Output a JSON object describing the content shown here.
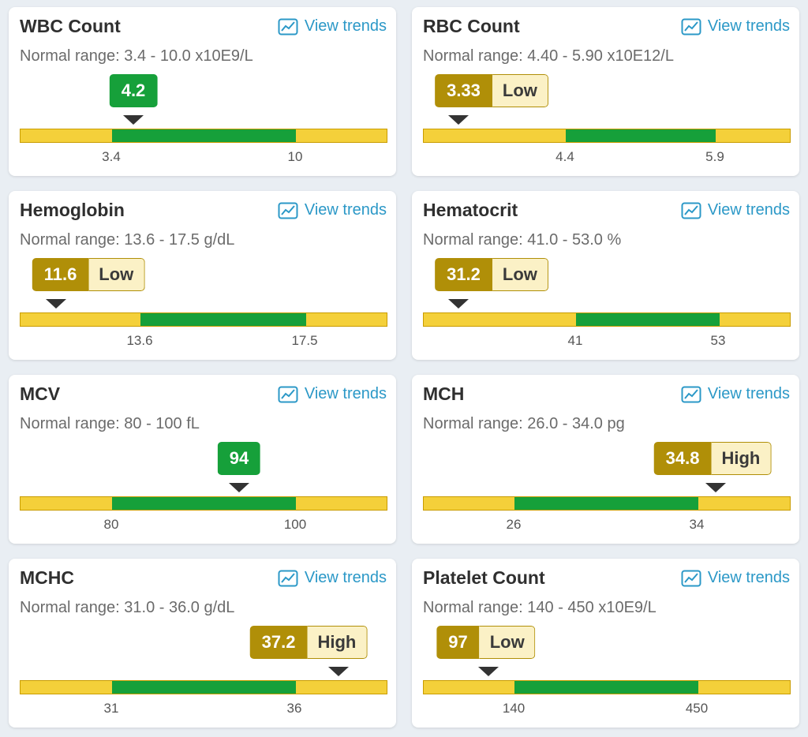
{
  "trend_label": "View trends",
  "colors": {
    "normal": "#16a03a",
    "abnormal": "#b08f08",
    "bar_edge": "#f4d03a",
    "link": "#2b98c7"
  },
  "tests": [
    {
      "name": "WBC Count",
      "range_text": "Normal range: 3.4 - 10.0 x10E9/L",
      "value": "4.2",
      "status": "",
      "low_tick": "3.4",
      "high_tick": "10"
    },
    {
      "name": "RBC Count",
      "range_text": "Normal range: 4.40 - 5.90 x10E12/L",
      "value": "3.33",
      "status": "Low",
      "low_tick": "4.4",
      "high_tick": "5.9"
    },
    {
      "name": "Hemoglobin",
      "range_text": "Normal range: 13.6 - 17.5 g/dL",
      "value": "11.6",
      "status": "Low",
      "low_tick": "13.6",
      "high_tick": "17.5"
    },
    {
      "name": "Hematocrit",
      "range_text": "Normal range: 41.0 - 53.0 %",
      "value": "31.2",
      "status": "Low",
      "low_tick": "41",
      "high_tick": "53"
    },
    {
      "name": "MCV",
      "range_text": "Normal range: 80 - 100 fL",
      "value": "94",
      "status": "",
      "low_tick": "80",
      "high_tick": "100"
    },
    {
      "name": "MCH",
      "range_text": "Normal range: 26.0 - 34.0 pg",
      "value": "34.8",
      "status": "High",
      "low_tick": "26",
      "high_tick": "34"
    },
    {
      "name": "MCHC",
      "range_text": "Normal range: 31.0 - 36.0 g/dL",
      "value": "37.2",
      "status": "High",
      "low_tick": "31",
      "high_tick": "36"
    },
    {
      "name": "Platelet Count",
      "range_text": "Normal range: 140 - 450 x10E9/L",
      "value": "97",
      "status": "Low",
      "low_tick": "140",
      "high_tick": "450"
    }
  ]
}
